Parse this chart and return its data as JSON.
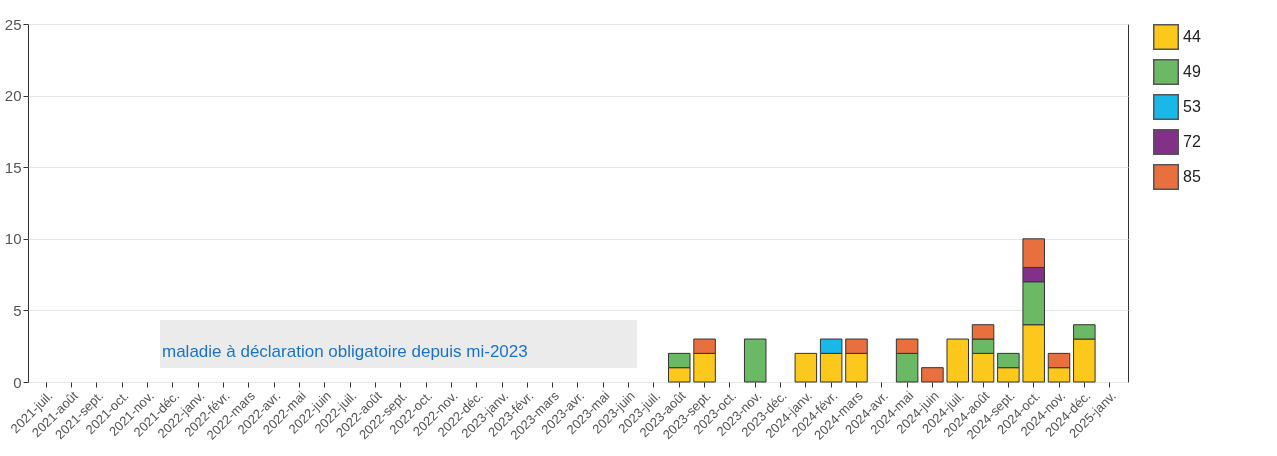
{
  "chart_data": {
    "type": "bar",
    "stacked": true,
    "categories": [
      "2021-juil.",
      "2021-août",
      "2021-sept.",
      "2021-oct.",
      "2021-nov.",
      "2021-déc.",
      "2022-janv.",
      "2022-févr.",
      "2022-mars",
      "2022-avr.",
      "2022-mai",
      "2022-juin",
      "2022-juil.",
      "2022-août",
      "2022-sept.",
      "2022-oct.",
      "2022-nov.",
      "2022-déc.",
      "2023-janv.",
      "2023-févr.",
      "2023-mars",
      "2023-avr.",
      "2023-mai",
      "2023-juin",
      "2023-juil.",
      "2023-août",
      "2023-sept.",
      "2023-oct.",
      "2023-nov.",
      "2023-déc.",
      "2024-janv.",
      "2024-févr.",
      "2024-mars",
      "2024-avr.",
      "2024-mai",
      "2024-juin",
      "2024-juil.",
      "2024-août",
      "2024-sept.",
      "2024-oct.",
      "2024-nov.",
      "2024-déc.",
      "2025-janv."
    ],
    "series": [
      {
        "name": "44",
        "color": "#fcc81c",
        "values": [
          null,
          null,
          null,
          null,
          null,
          null,
          null,
          null,
          null,
          null,
          null,
          null,
          null,
          null,
          null,
          null,
          null,
          null,
          null,
          null,
          null,
          null,
          null,
          null,
          null,
          1,
          2,
          null,
          null,
          null,
          2,
          2,
          2,
          null,
          null,
          null,
          3,
          2,
          1,
          4,
          1,
          3,
          null
        ]
      },
      {
        "name": "49",
        "color": "#6bb865",
        "values": [
          null,
          null,
          null,
          null,
          null,
          null,
          null,
          null,
          null,
          null,
          null,
          null,
          null,
          null,
          null,
          null,
          null,
          null,
          null,
          null,
          null,
          null,
          null,
          null,
          null,
          1,
          null,
          null,
          3,
          null,
          null,
          null,
          null,
          null,
          2,
          null,
          null,
          1,
          1,
          3,
          null,
          1,
          null
        ]
      },
      {
        "name": "53",
        "color": "#1ab8e8",
        "values": [
          null,
          null,
          null,
          null,
          null,
          null,
          null,
          null,
          null,
          null,
          null,
          null,
          null,
          null,
          null,
          null,
          null,
          null,
          null,
          null,
          null,
          null,
          null,
          null,
          null,
          null,
          null,
          null,
          null,
          null,
          null,
          1,
          null,
          null,
          null,
          null,
          null,
          null,
          null,
          null,
          null,
          null,
          null
        ]
      },
      {
        "name": "72",
        "color": "#823189",
        "values": [
          null,
          null,
          null,
          null,
          null,
          null,
          null,
          null,
          null,
          null,
          null,
          null,
          null,
          null,
          null,
          null,
          null,
          null,
          null,
          null,
          null,
          null,
          null,
          null,
          null,
          null,
          null,
          null,
          null,
          null,
          null,
          null,
          null,
          null,
          null,
          null,
          null,
          null,
          null,
          1,
          null,
          null,
          null
        ]
      },
      {
        "name": "85",
        "color": "#e8703f",
        "values": [
          null,
          null,
          null,
          null,
          null,
          null,
          null,
          null,
          null,
          null,
          null,
          null,
          null,
          null,
          null,
          null,
          null,
          null,
          null,
          null,
          null,
          null,
          null,
          null,
          null,
          null,
          1,
          null,
          null,
          null,
          null,
          null,
          1,
          null,
          1,
          1,
          null,
          1,
          null,
          2,
          1,
          null,
          null
        ]
      }
    ],
    "ylim": [
      0,
      25
    ],
    "yticks": [
      0,
      5,
      10,
      15,
      20,
      25
    ],
    "grid": "y",
    "legend": "right",
    "annotations": [
      "maladie à déclaration obligatoire depuis mi-2023"
    ]
  }
}
